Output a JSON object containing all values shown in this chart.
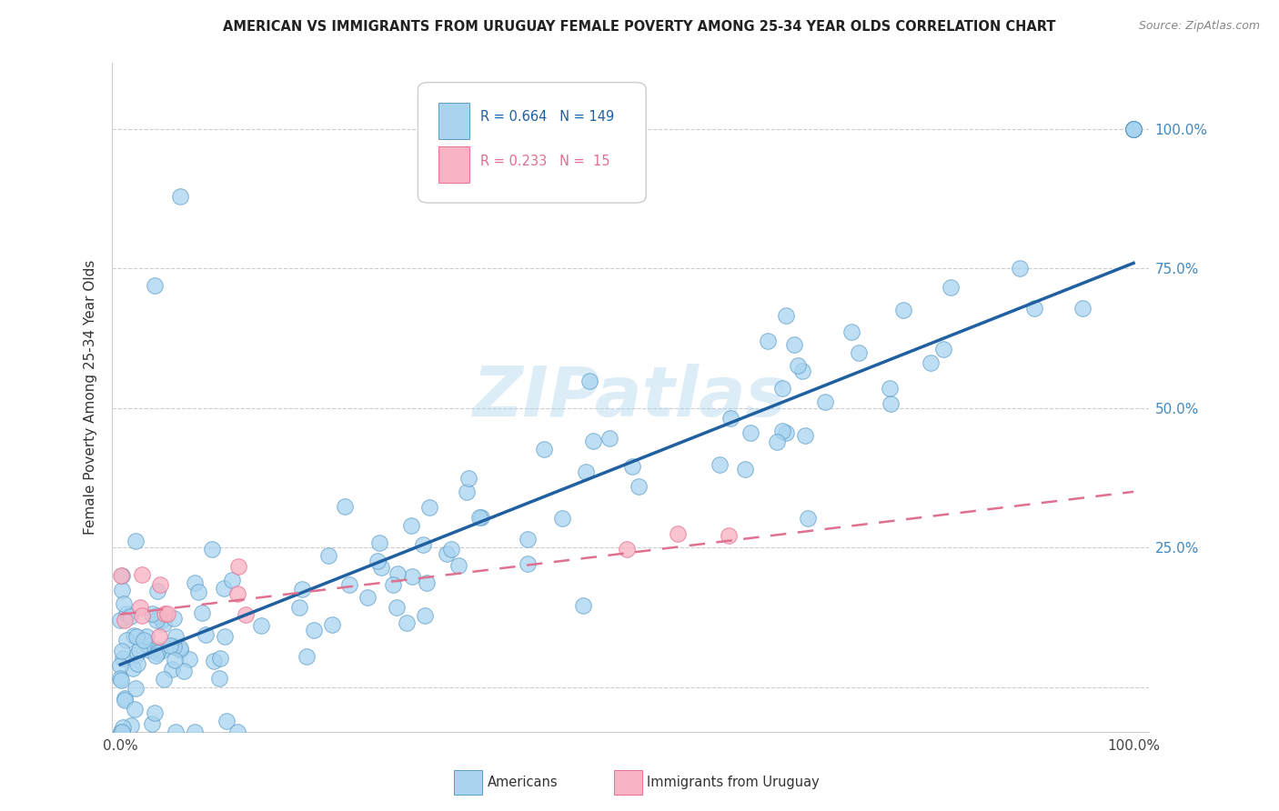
{
  "title": "AMERICAN VS IMMIGRANTS FROM URUGUAY FEMALE POVERTY AMONG 25-34 YEAR OLDS CORRELATION CHART",
  "source": "Source: ZipAtlas.com",
  "ylabel": "Female Poverty Among 25-34 Year Olds",
  "R_american": 0.664,
  "N_american": 149,
  "R_uruguay": 0.233,
  "N_uruguay": 15,
  "american_fill": "#a8d4ef",
  "american_edge": "#5b9dc9",
  "uruguay_fill": "#f8b4c4",
  "uruguay_edge": "#e87090",
  "american_line_color": "#2060a0",
  "uruguay_line_color": "#e07090",
  "watermark": "ZIPatlas",
  "american_line_intercept": 0.04,
  "american_line_slope": 0.72,
  "uruguay_line_intercept": 0.13,
  "uruguay_line_slope": 0.22,
  "right_tick_color": "#4488bb"
}
